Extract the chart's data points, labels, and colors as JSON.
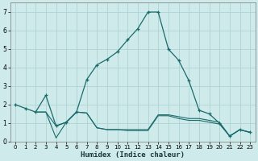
{
  "xlabel": "Humidex (Indice chaleur)",
  "bg_color": "#ceeaea",
  "line_color": "#1a6b6b",
  "grid_color": "#aed4d4",
  "xlim": [
    -0.5,
    23.5
  ],
  "ylim": [
    0,
    7.5
  ],
  "yticks": [
    0,
    1,
    2,
    3,
    4,
    5,
    6,
    7
  ],
  "xticks": [
    0,
    1,
    2,
    3,
    4,
    5,
    6,
    7,
    8,
    9,
    10,
    11,
    12,
    13,
    14,
    15,
    16,
    17,
    18,
    19,
    20,
    21,
    22,
    23
  ],
  "line1_x": [
    0,
    1,
    2,
    3,
    4,
    5,
    6,
    7,
    8,
    9,
    10,
    11,
    12,
    13,
    14,
    15,
    16,
    17,
    18,
    19,
    20,
    21,
    22,
    23
  ],
  "line1_y": [
    2.0,
    1.8,
    1.6,
    2.5,
    0.85,
    1.05,
    1.6,
    3.35,
    4.15,
    4.45,
    4.85,
    5.5,
    6.1,
    7.0,
    7.0,
    5.0,
    4.4,
    3.3,
    1.7,
    1.5,
    1.0,
    0.3,
    0.65,
    0.5
  ],
  "line2_x": [
    2,
    3,
    4,
    5,
    6,
    7,
    8,
    9,
    10,
    11,
    12,
    13,
    14,
    15,
    16,
    17,
    18,
    19,
    20,
    21,
    22,
    23
  ],
  "line2_y": [
    1.6,
    1.6,
    0.85,
    1.05,
    1.6,
    1.55,
    0.75,
    0.65,
    0.65,
    0.65,
    0.65,
    0.65,
    1.45,
    1.45,
    1.35,
    1.25,
    1.25,
    1.15,
    1.05,
    0.3,
    0.65,
    0.5
  ],
  "line3_x": [
    2,
    3,
    4,
    5,
    6,
    7,
    8,
    9,
    10,
    11,
    12,
    13,
    14,
    15,
    16,
    17,
    18,
    19,
    20,
    21,
    22,
    23
  ],
  "line3_y": [
    1.6,
    1.6,
    0.2,
    1.05,
    1.6,
    1.55,
    0.75,
    0.65,
    0.65,
    0.6,
    0.6,
    0.6,
    1.4,
    1.4,
    1.25,
    1.15,
    1.15,
    1.05,
    0.95,
    0.3,
    0.65,
    0.5
  ]
}
